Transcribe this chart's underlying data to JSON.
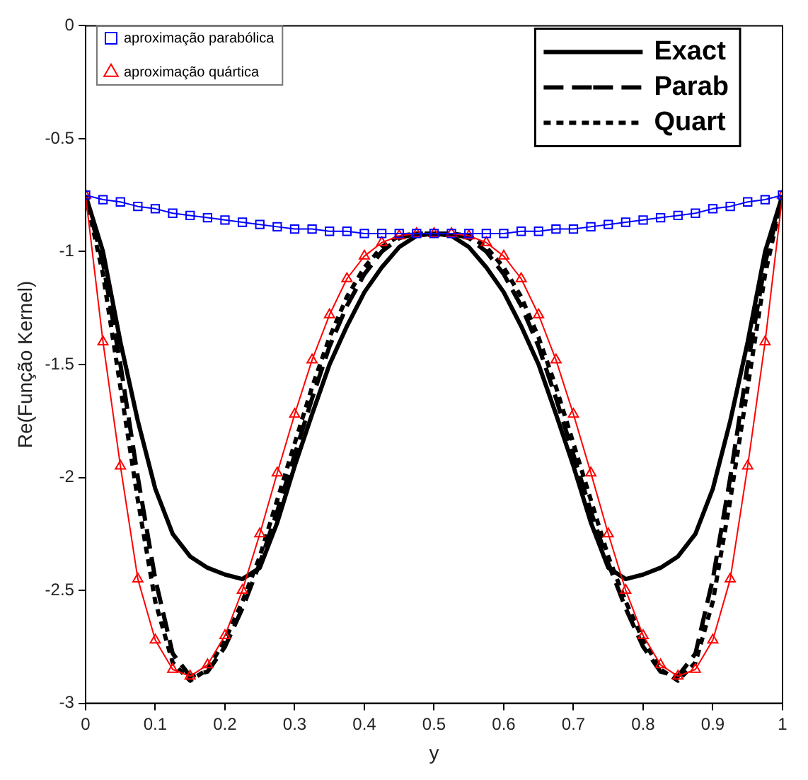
{
  "chart_data": {
    "type": "line",
    "xlabel": "y",
    "ylabel": "Re(Função Kernel)",
    "x": [
      0,
      0.025,
      0.05,
      0.075,
      0.1,
      0.125,
      0.15,
      0.175,
      0.2,
      0.225,
      0.25,
      0.275,
      0.3,
      0.325,
      0.35,
      0.375,
      0.4,
      0.425,
      0.45,
      0.475,
      0.5,
      0.525,
      0.55,
      0.575,
      0.6,
      0.625,
      0.65,
      0.675,
      0.7,
      0.725,
      0.75,
      0.775,
      0.8,
      0.825,
      0.85,
      0.875,
      0.9,
      0.925,
      0.95,
      0.975,
      1
    ],
    "xlim": [
      0,
      1
    ],
    "xticks": [
      0,
      0.1,
      0.2,
      0.3,
      0.4,
      0.5,
      0.6,
      0.7,
      0.8,
      0.9,
      1
    ],
    "ylim": [
      -3,
      0
    ],
    "yticks": [
      -3,
      -2.5,
      -2,
      -1.5,
      -1,
      -0.5,
      0
    ],
    "grid": false,
    "legend": "top",
    "series": [
      {
        "name": "aproximação parabólica",
        "color": "#0000ff",
        "marker": "square",
        "line_style": "solid",
        "values": [
          -0.75,
          -0.77,
          -0.78,
          -0.8,
          -0.81,
          -0.83,
          -0.84,
          -0.85,
          -0.86,
          -0.87,
          -0.88,
          -0.89,
          -0.9,
          -0.9,
          -0.91,
          -0.91,
          -0.92,
          -0.92,
          -0.92,
          -0.92,
          -0.92,
          -0.92,
          -0.92,
          -0.92,
          -0.92,
          -0.91,
          -0.91,
          -0.9,
          -0.9,
          -0.89,
          -0.88,
          -0.87,
          -0.86,
          -0.85,
          -0.84,
          -0.83,
          -0.81,
          -0.8,
          -0.78,
          -0.77,
          -0.75
        ]
      },
      {
        "name": "aproximação quártica",
        "color": "#ff0000",
        "marker": "triangle",
        "line_style": "solid",
        "values": [
          -0.75,
          -1.4,
          -1.95,
          -2.45,
          -2.72,
          -2.85,
          -2.88,
          -2.83,
          -2.7,
          -2.5,
          -2.25,
          -1.98,
          -1.72,
          -1.48,
          -1.28,
          -1.12,
          -1.02,
          -0.96,
          -0.93,
          -0.92,
          -0.92,
          -0.92,
          -0.93,
          -0.96,
          -1.02,
          -1.12,
          -1.28,
          -1.48,
          -1.72,
          -1.98,
          -2.25,
          -2.5,
          -2.7,
          -2.83,
          -2.88,
          -2.85,
          -2.72,
          -2.45,
          -1.95,
          -1.4,
          -0.75
        ]
      },
      {
        "name": "Exact",
        "color": "#000000",
        "marker": "none",
        "line_style": "solid",
        "values": [
          -0.75,
          -1.0,
          -1.4,
          -1.75,
          -2.05,
          -2.25,
          -2.35,
          -2.4,
          -2.43,
          -2.45,
          -2.4,
          -2.2,
          -1.95,
          -1.72,
          -1.5,
          -1.33,
          -1.18,
          -1.07,
          -0.98,
          -0.93,
          -0.92,
          -0.93,
          -0.98,
          -1.07,
          -1.18,
          -1.33,
          -1.5,
          -1.72,
          -1.95,
          -2.2,
          -2.4,
          -2.45,
          -2.43,
          -2.4,
          -2.35,
          -2.25,
          -2.05,
          -1.75,
          -1.4,
          -1.0,
          -0.75
        ]
      },
      {
        "name": "Parab",
        "color": "#000000",
        "marker": "none",
        "line_style": "dashed",
        "values": [
          -0.75,
          -1.05,
          -1.5,
          -2.0,
          -2.45,
          -2.78,
          -2.88,
          -2.86,
          -2.75,
          -2.58,
          -2.38,
          -2.15,
          -1.9,
          -1.65,
          -1.42,
          -1.24,
          -1.1,
          -1.0,
          -0.94,
          -0.92,
          -0.92,
          -0.92,
          -0.94,
          -1.0,
          -1.1,
          -1.24,
          -1.42,
          -1.65,
          -1.9,
          -2.15,
          -2.38,
          -2.58,
          -2.75,
          -2.86,
          -2.88,
          -2.78,
          -2.45,
          -2.0,
          -1.5,
          -1.05,
          -0.75
        ]
      },
      {
        "name": "Quart",
        "color": "#000000",
        "marker": "none",
        "line_style": "dotted",
        "values": [
          -0.75,
          -1.1,
          -1.6,
          -2.1,
          -2.55,
          -2.82,
          -2.9,
          -2.85,
          -2.72,
          -2.55,
          -2.35,
          -2.1,
          -1.85,
          -1.6,
          -1.38,
          -1.2,
          -1.07,
          -0.98,
          -0.93,
          -0.92,
          -0.92,
          -0.92,
          -0.93,
          -0.98,
          -1.07,
          -1.2,
          -1.38,
          -1.6,
          -1.85,
          -2.1,
          -2.35,
          -2.55,
          -2.72,
          -2.85,
          -2.9,
          -2.82,
          -2.55,
          -2.1,
          -1.6,
          -1.1,
          -0.75
        ]
      }
    ]
  }
}
